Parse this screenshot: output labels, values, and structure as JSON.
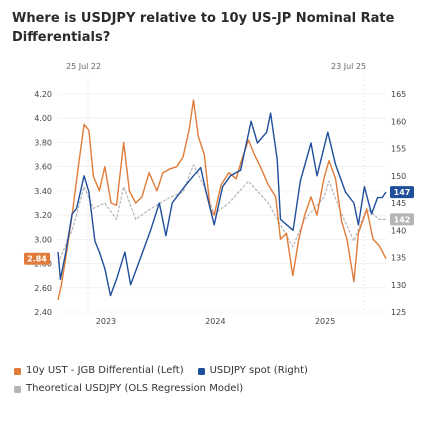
{
  "title": "Where is USDJPY relative to 10y US-JP Nominal Rate Differentials?",
  "top_dates": [
    "25 Jul 22",
    "23 Jul 25"
  ],
  "colors": {
    "differential": "#e07b39",
    "spot": "#1f4e9a",
    "theoretical": "#b5b5b5",
    "grid": "#e9e9e9"
  },
  "legend": {
    "differential": "10y UST - JGB Differential (Left)",
    "spot": "USDJPY spot (Right)",
    "theoretical": "Theoretical USDJPY (OLS Regression Model)"
  },
  "chart_data": {
    "type": "line",
    "title": "Where is USDJPY relative to 10y US-JP Nominal Rate Differentials?",
    "x_range": [
      "2022-07-25",
      "2025-07-23"
    ],
    "x_ticks": [
      "2023",
      "2024",
      "2025"
    ],
    "y_left": {
      "ticks": [
        "2.40",
        "2.60",
        "2.80",
        "3.00",
        "3.20",
        "3.40",
        "3.60",
        "3.80",
        "4.00",
        "4.20"
      ],
      "range": [
        2.4,
        4.2
      ]
    },
    "y_right": {
      "ticks": [
        "125",
        "130",
        "135",
        "140",
        "145",
        "150",
        "155",
        "160",
        "165"
      ],
      "range": [
        125,
        165
      ]
    },
    "last_values": {
      "differential": "2.84",
      "spot": "147",
      "theoretical": "142"
    },
    "series": [
      {
        "name": "10y UST - JGB Differential (Left)",
        "axis": "left",
        "points": [
          [
            "2022-07-25",
            2.5
          ],
          [
            "2022-08-05",
            2.62
          ],
          [
            "2022-08-20",
            2.85
          ],
          [
            "2022-09-10",
            3.2
          ],
          [
            "2022-09-28",
            3.55
          ],
          [
            "2022-10-20",
            3.95
          ],
          [
            "2022-11-05",
            3.9
          ],
          [
            "2022-11-20",
            3.52
          ],
          [
            "2022-12-10",
            3.4
          ],
          [
            "2022-12-28",
            3.6
          ],
          [
            "2023-01-18",
            3.3
          ],
          [
            "2023-02-05",
            3.28
          ],
          [
            "2023-03-01",
            3.8
          ],
          [
            "2023-03-20",
            3.4
          ],
          [
            "2023-04-10",
            3.3
          ],
          [
            "2023-05-01",
            3.35
          ],
          [
            "2023-05-25",
            3.55
          ],
          [
            "2023-06-20",
            3.4
          ],
          [
            "2023-07-10",
            3.55
          ],
          [
            "2023-08-01",
            3.58
          ],
          [
            "2023-08-25",
            3.6
          ],
          [
            "2023-09-15",
            3.68
          ],
          [
            "2023-10-05",
            3.9
          ],
          [
            "2023-10-20",
            4.15
          ],
          [
            "2023-11-05",
            3.85
          ],
          [
            "2023-11-25",
            3.7
          ],
          [
            "2023-12-15",
            3.25
          ],
          [
            "2023-12-28",
            3.2
          ],
          [
            "2024-01-20",
            3.45
          ],
          [
            "2024-02-15",
            3.55
          ],
          [
            "2024-03-10",
            3.5
          ],
          [
            "2024-03-28",
            3.65
          ],
          [
            "2024-04-20",
            3.82
          ],
          [
            "2024-05-10",
            3.7
          ],
          [
            "2024-05-30",
            3.6
          ],
          [
            "2024-06-25",
            3.45
          ],
          [
            "2024-07-20",
            3.35
          ],
          [
            "2024-08-05",
            3.0
          ],
          [
            "2024-08-25",
            3.05
          ],
          [
            "2024-09-15",
            2.7
          ],
          [
            "2024-10-05",
            3.0
          ],
          [
            "2024-10-25",
            3.2
          ],
          [
            "2024-11-15",
            3.35
          ],
          [
            "2024-12-05",
            3.2
          ],
          [
            "2024-12-28",
            3.5
          ],
          [
            "2025-01-14",
            3.65
          ],
          [
            "2025-02-05",
            3.5
          ],
          [
            "2025-02-25",
            3.15
          ],
          [
            "2025-03-15",
            3.0
          ],
          [
            "2025-04-07",
            2.65
          ],
          [
            "2025-04-22",
            3.05
          ],
          [
            "2025-05-20",
            3.25
          ],
          [
            "2025-06-10",
            3.0
          ],
          [
            "2025-06-30",
            2.95
          ],
          [
            "2025-07-23",
            2.84
          ]
        ]
      },
      {
        "name": "USDJPY spot (Right)",
        "axis": "right",
        "points": [
          [
            "2022-07-25",
            136
          ],
          [
            "2022-08-02",
            131
          ],
          [
            "2022-08-20",
            136
          ],
          [
            "2022-09-10",
            143
          ],
          [
            "2022-09-25",
            144
          ],
          [
            "2022-10-20",
            150
          ],
          [
            "2022-11-05",
            147
          ],
          [
            "2022-11-25",
            138
          ],
          [
            "2022-12-10",
            136
          ],
          [
            "2022-12-28",
            133
          ],
          [
            "2023-01-16",
            128
          ],
          [
            "2023-02-05",
            131
          ],
          [
            "2023-03-05",
            136
          ],
          [
            "2023-03-24",
            130
          ],
          [
            "2023-04-20",
            134
          ],
          [
            "2023-05-30",
            140
          ],
          [
            "2023-06-28",
            145
          ],
          [
            "2023-07-20",
            139
          ],
          [
            "2023-08-10",
            145
          ],
          [
            "2023-09-20",
            148
          ],
          [
            "2023-10-20",
            150
          ],
          [
            "2023-11-13",
            151.5
          ],
          [
            "2023-12-01",
            147
          ],
          [
            "2023-12-28",
            141
          ],
          [
            "2024-01-25",
            148
          ],
          [
            "2024-02-20",
            150
          ],
          [
            "2024-03-25",
            151
          ],
          [
            "2024-04-29",
            160
          ],
          [
            "2024-05-20",
            156
          ],
          [
            "2024-06-20",
            158
          ],
          [
            "2024-07-03",
            161.5
          ],
          [
            "2024-07-25",
            153
          ],
          [
            "2024-08-05",
            142
          ],
          [
            "2024-09-16",
            140
          ],
          [
            "2024-10-10",
            149
          ],
          [
            "2024-11-15",
            156
          ],
          [
            "2024-12-05",
            150
          ],
          [
            "2025-01-10",
            158
          ],
          [
            "2025-02-05",
            152
          ],
          [
            "2025-03-10",
            147
          ],
          [
            "2025-04-07",
            145
          ],
          [
            "2025-04-22",
            141
          ],
          [
            "2025-05-12",
            148
          ],
          [
            "2025-06-05",
            143
          ],
          [
            "2025-06-25",
            146
          ],
          [
            "2025-07-10",
            146
          ],
          [
            "2025-07-23",
            147
          ]
        ]
      },
      {
        "name": "Theoretical USDJPY (OLS Regression Model)",
        "axis": "right",
        "points": [
          [
            "2022-07-25",
            134
          ],
          [
            "2022-09-10",
            140
          ],
          [
            "2022-10-20",
            148
          ],
          [
            "2022-11-20",
            144
          ],
          [
            "2022-12-28",
            145
          ],
          [
            "2023-02-05",
            142
          ],
          [
            "2023-03-01",
            148
          ],
          [
            "2023-04-10",
            142
          ],
          [
            "2023-06-01",
            144
          ],
          [
            "2023-08-01",
            146
          ],
          [
            "2023-09-15",
            147
          ],
          [
            "2023-10-20",
            152
          ],
          [
            "2023-11-25",
            148
          ],
          [
            "2023-12-28",
            143
          ],
          [
            "2024-02-15",
            145
          ],
          [
            "2024-04-20",
            149
          ],
          [
            "2024-06-25",
            145
          ],
          [
            "2024-08-05",
            141
          ],
          [
            "2024-09-15",
            137
          ],
          [
            "2024-10-25",
            142
          ],
          [
            "2024-12-28",
            146
          ],
          [
            "2025-01-14",
            149
          ],
          [
            "2025-02-25",
            143
          ],
          [
            "2025-04-07",
            138
          ],
          [
            "2025-05-20",
            144
          ],
          [
            "2025-06-30",
            142
          ],
          [
            "2025-07-23",
            142
          ]
        ]
      }
    ]
  }
}
